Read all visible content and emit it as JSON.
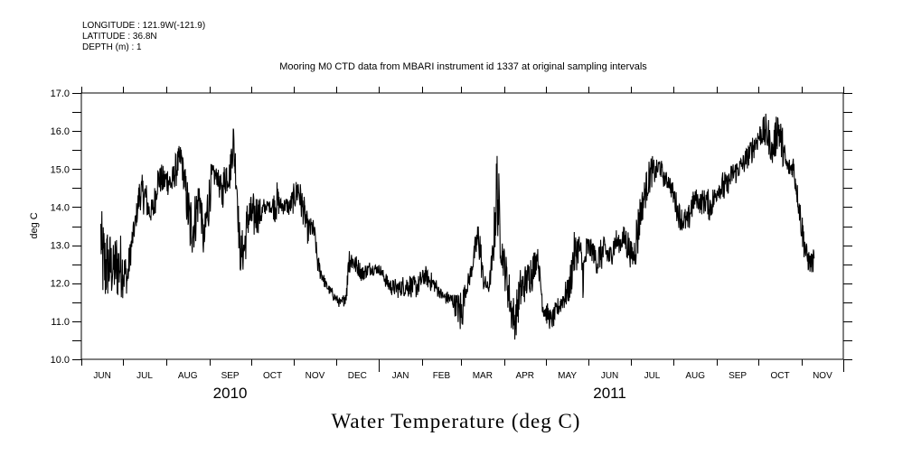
{
  "header": {
    "longitude": "LONGITUDE : 121.9W(-121.9)",
    "latitude": "LATITUDE : 36.8N",
    "depth": "DEPTH (m) : 1"
  },
  "chart_data": {
    "type": "line",
    "title": "Mooring M0 CTD data from MBARI instrument id 1337 at original sampling intervals",
    "bottom_title": "Water Temperature (deg C)",
    "xlabel": "",
    "ylabel": "deg C",
    "x_units": "days since 2010-06-01",
    "xlim": [
      0,
      548
    ],
    "ylim": [
      10.0,
      17.0
    ],
    "y_ticks": [
      "10.0",
      "11.0",
      "12.0",
      "13.0",
      "14.0",
      "15.0",
      "16.0",
      "17.0"
    ],
    "y_tick_values": [
      10,
      11,
      12,
      13,
      14,
      15,
      16,
      17
    ],
    "y_minor_step": 0.5,
    "month_ticks": [
      {
        "label": "JUN",
        "start": 0
      },
      {
        "label": "JUL",
        "start": 30
      },
      {
        "label": "AUG",
        "start": 61
      },
      {
        "label": "SEP",
        "start": 92
      },
      {
        "label": "OCT",
        "start": 122
      },
      {
        "label": "NOV",
        "start": 153
      },
      {
        "label": "DEC",
        "start": 183
      },
      {
        "label": "JAN",
        "start": 214
      },
      {
        "label": "FEB",
        "start": 245
      },
      {
        "label": "MAR",
        "start": 273
      },
      {
        "label": "APR",
        "start": 304
      },
      {
        "label": "MAY",
        "start": 334
      },
      {
        "label": "JUN",
        "start": 365
      },
      {
        "label": "JUL",
        "start": 395
      },
      {
        "label": "AUG",
        "start": 426
      },
      {
        "label": "SEP",
        "start": 457
      },
      {
        "label": "OCT",
        "start": 487
      },
      {
        "label": "NOV",
        "start": 518
      }
    ],
    "year_boundary": 214,
    "years": [
      {
        "label": "2010",
        "center": 107
      },
      {
        "label": "2011",
        "center": 380
      }
    ],
    "grid": false,
    "legend": "none",
    "series": [
      {
        "name": "Water Temperature",
        "color": "#000000",
        "envelope_format": [
          "day",
          "low",
          "high"
        ],
        "envelope": [
          [
            14,
            12.5,
            14.2
          ],
          [
            15,
            11.2,
            13.8
          ],
          [
            20,
            11.3,
            13.6
          ],
          [
            23,
            11.6,
            13.2
          ],
          [
            26,
            11.5,
            13.5
          ],
          [
            29,
            11.6,
            13.3
          ],
          [
            33,
            11.6,
            12.6
          ],
          [
            36,
            12.5,
            13.5
          ],
          [
            39,
            13.3,
            13.9
          ],
          [
            42,
            13.8,
            14.9
          ],
          [
            46,
            13.8,
            14.8
          ],
          [
            49,
            13.5,
            14.2
          ],
          [
            52,
            13.5,
            14.4
          ],
          [
            55,
            14.3,
            15.2
          ],
          [
            59,
            14.2,
            15.1
          ],
          [
            62,
            14.3,
            15.2
          ],
          [
            65,
            14.2,
            15.0
          ],
          [
            68,
            14.5,
            15.5
          ],
          [
            72,
            14.9,
            15.7
          ],
          [
            75,
            13.8,
            15.0
          ],
          [
            78,
            12.6,
            14.5
          ],
          [
            81,
            12.7,
            14.3
          ],
          [
            85,
            13.8,
            15.0
          ],
          [
            88,
            12.5,
            13.5
          ],
          [
            91,
            13.0,
            15.0
          ],
          [
            94,
            14.5,
            15.2
          ],
          [
            98,
            14.5,
            15.1
          ],
          [
            101,
            13.8,
            14.8
          ],
          [
            104,
            14.3,
            15.5
          ],
          [
            107,
            14.4,
            15.3
          ],
          [
            109,
            15.0,
            16.7
          ],
          [
            112,
            14.0,
            15.0
          ],
          [
            114,
            12.1,
            13.5
          ],
          [
            117,
            12.3,
            13.4
          ],
          [
            120,
            13.0,
            14.5
          ],
          [
            124,
            13.1,
            14.4
          ],
          [
            127,
            13.3,
            14.4
          ],
          [
            130,
            13.4,
            14.3
          ],
          [
            133,
            13.9,
            14.2
          ],
          [
            137,
            13.8,
            14.2
          ],
          [
            140,
            13.5,
            14.8
          ],
          [
            143,
            13.8,
            14.3
          ],
          [
            146,
            13.8,
            14.3
          ],
          [
            150,
            13.7,
            14.3
          ],
          [
            156,
            14.0,
            15.0
          ],
          [
            159,
            13.5,
            14.5
          ],
          [
            163,
            13.0,
            13.8
          ],
          [
            166,
            13.1,
            13.8
          ],
          [
            168,
            13.0,
            13.5
          ],
          [
            170,
            12.2,
            12.8
          ],
          [
            176,
            11.8,
            12.1
          ],
          [
            182,
            11.5,
            11.8
          ],
          [
            187,
            11.3,
            11.6
          ],
          [
            191,
            11.5,
            12.0
          ],
          [
            192,
            12.1,
            13.2
          ],
          [
            195,
            12.3,
            12.9
          ],
          [
            202,
            12.0,
            12.5
          ],
          [
            208,
            12.2,
            12.6
          ],
          [
            215,
            12.2,
            12.5
          ],
          [
            221,
            11.7,
            12.2
          ],
          [
            228,
            11.6,
            12.1
          ],
          [
            234,
            11.6,
            12.3
          ],
          [
            241,
            11.6,
            12.2
          ],
          [
            247,
            11.9,
            12.5
          ],
          [
            254,
            11.7,
            12.2
          ],
          [
            260,
            11.5,
            11.8
          ],
          [
            267,
            11.3,
            11.8
          ],
          [
            270,
            11.0,
            11.8
          ],
          [
            273,
            10.3,
            12.0
          ],
          [
            276,
            11.5,
            12.0
          ],
          [
            280,
            12.0,
            12.5
          ],
          [
            283,
            12.5,
            13.2
          ],
          [
            286,
            12.5,
            14.0
          ],
          [
            289,
            11.8,
            12.4
          ],
          [
            293,
            11.7,
            12.0
          ],
          [
            296,
            12.2,
            13.3
          ],
          [
            299,
            13.0,
            16.1
          ],
          [
            302,
            12.4,
            13.4
          ],
          [
            306,
            11.5,
            12.8
          ],
          [
            309,
            10.7,
            12.0
          ],
          [
            312,
            10.5,
            11.5
          ],
          [
            315,
            11.0,
            12.4
          ],
          [
            319,
            11.5,
            12.5
          ],
          [
            325,
            11.8,
            13.0
          ],
          [
            328,
            12.5,
            13.0
          ],
          [
            332,
            11.0,
            11.8
          ],
          [
            335,
            10.9,
            11.5
          ],
          [
            338,
            10.7,
            11.3
          ],
          [
            345,
            11.2,
            11.8
          ],
          [
            351,
            11.4,
            12.3
          ],
          [
            354,
            12.0,
            13.5
          ],
          [
            358,
            12.6,
            13.4
          ],
          [
            361,
            11.5,
            12.9
          ],
          [
            364,
            12.5,
            13.4
          ],
          [
            367,
            12.6,
            13.2
          ],
          [
            371,
            12.1,
            13.0
          ],
          [
            374,
            12.3,
            13.3
          ],
          [
            377,
            12.4,
            13.3
          ],
          [
            380,
            12.3,
            13.0
          ],
          [
            384,
            12.7,
            13.5
          ],
          [
            387,
            12.8,
            13.3
          ],
          [
            390,
            12.8,
            13.6
          ],
          [
            393,
            12.5,
            13.5
          ],
          [
            397,
            12.3,
            13.0
          ],
          [
            400,
            12.5,
            14.2
          ],
          [
            403,
            13.5,
            14.5
          ],
          [
            406,
            14.0,
            15.0
          ],
          [
            410,
            14.5,
            15.4
          ],
          [
            413,
            14.6,
            15.2
          ],
          [
            416,
            14.8,
            15.4
          ],
          [
            419,
            14.5,
            15.0
          ],
          [
            423,
            14.4,
            14.9
          ],
          [
            426,
            14.0,
            14.6
          ],
          [
            429,
            13.5,
            14.3
          ],
          [
            432,
            13.3,
            14.0
          ],
          [
            436,
            13.2,
            14.0
          ],
          [
            439,
            13.6,
            14.5
          ],
          [
            442,
            14.0,
            14.5
          ],
          [
            445,
            13.8,
            14.4
          ],
          [
            449,
            13.8,
            14.6
          ],
          [
            452,
            13.6,
            14.4
          ],
          [
            455,
            13.8,
            14.6
          ],
          [
            458,
            14.2,
            14.8
          ],
          [
            462,
            14.0,
            15.0
          ],
          [
            465,
            14.3,
            14.9
          ],
          [
            468,
            14.5,
            15.2
          ],
          [
            471,
            14.6,
            15.3
          ],
          [
            475,
            14.8,
            15.4
          ],
          [
            478,
            14.9,
            15.6
          ],
          [
            481,
            15.0,
            15.8
          ],
          [
            484,
            15.3,
            16.0
          ],
          [
            488,
            15.5,
            16.3
          ],
          [
            491,
            15.5,
            16.5
          ],
          [
            494,
            15.3,
            16.4
          ],
          [
            497,
            15.0,
            15.8
          ],
          [
            501,
            15.4,
            16.9
          ],
          [
            504,
            15.0,
            16.2
          ],
          [
            507,
            14.8,
            15.4
          ],
          [
            510,
            14.7,
            15.3
          ],
          [
            512,
            14.7,
            15.5
          ],
          [
            515,
            14.0,
            14.7
          ],
          [
            517,
            13.3,
            14.3
          ],
          [
            519,
            12.8,
            13.8
          ],
          [
            521,
            12.4,
            13.2
          ],
          [
            524,
            12.2,
            12.8
          ],
          [
            527,
            12.3,
            13.0
          ]
        ]
      }
    ]
  }
}
